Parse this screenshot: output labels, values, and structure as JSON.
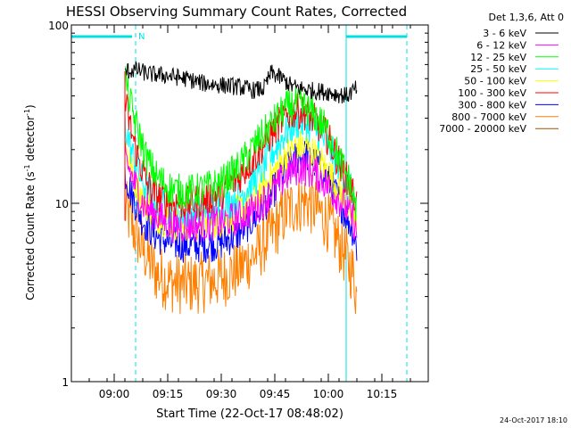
{
  "chart_data": {
    "type": "line",
    "title": "HESSI Observing Summary Count Rates, Corrected",
    "ylabel": "Corrected Count Rate (s",
    "ylabel_sup": "-1",
    "ylabel_tail": " detector",
    "ylabel_end": ")",
    "xlabel": "Start Time (22-Oct-17 08:48:02)",
    "yscale": "log",
    "ylim": [
      1,
      100
    ],
    "xlim": [
      "08:48",
      "10:28"
    ],
    "xticks": [
      {
        "t": "09:00",
        "label": "09:00"
      },
      {
        "t": "09:15",
        "label": "09:15"
      },
      {
        "t": "09:30",
        "label": "09:30"
      },
      {
        "t": "09:45",
        "label": "09:45"
      },
      {
        "t": "10:00",
        "label": "10:00"
      },
      {
        "t": "10:15",
        "label": "10:15"
      }
    ],
    "yticks": [
      {
        "v": 1,
        "label": "1"
      },
      {
        "v": 10,
        "label": "10"
      },
      {
        "v": 100,
        "label": "100"
      }
    ],
    "legend_title": "Det 1,3,6, Att 0",
    "legend_position": "outside-right",
    "timestamp": "24-Oct-2017 18:10",
    "night_marker": "N",
    "markers": {
      "solid_lines": [
        "08:48",
        "10:05"
      ],
      "dashed_lines": [
        "09:06",
        "10:22"
      ],
      "night_bars": [
        [
          "08:48",
          "09:05"
        ],
        [
          "10:05",
          "10:22"
        ]
      ]
    },
    "series": [
      {
        "name": "3 - 6 keV",
        "color": "#000000",
        "t": [
          "09:03",
          "09:06",
          "09:10",
          "09:15",
          "09:20",
          "09:25",
          "09:30",
          "09:35",
          "09:39",
          "09:42",
          "09:44",
          "09:47",
          "09:50",
          "09:55",
          "10:00",
          "10:05",
          "10:08"
        ],
        "y": [
          55,
          56,
          53,
          52,
          50,
          47,
          46,
          45,
          43,
          44,
          54,
          50,
          45,
          43,
          42,
          40,
          44
        ]
      },
      {
        "name": "6 - 12 keV",
        "color": "#ff00ff",
        "t": [
          "09:03",
          "09:05",
          "09:08",
          "09:12",
          "09:16",
          "09:20",
          "09:25",
          "09:30",
          "09:35",
          "09:40",
          "09:45",
          "09:48",
          "09:50",
          "09:53",
          "09:57",
          "10:00",
          "10:04",
          "10:07",
          "10:08"
        ],
        "y": [
          18,
          14,
          10,
          8.5,
          7.5,
          7.5,
          7.6,
          7.8,
          8.3,
          9.5,
          12,
          14,
          15.5,
          15.8,
          14.5,
          12.5,
          10,
          8,
          6.5
        ]
      },
      {
        "name": "12 - 25 keV",
        "color": "#00ff00",
        "t": [
          "09:03",
          "09:04",
          "09:06",
          "09:09",
          "09:12",
          "09:16",
          "09:20",
          "09:25",
          "09:30",
          "09:35",
          "09:40",
          "09:45",
          "09:48",
          "09:51",
          "09:54",
          "09:57",
          "10:00",
          "10:03",
          "10:06",
          "10:08"
        ],
        "y": [
          52,
          40,
          28,
          18,
          14,
          12,
          11.5,
          12,
          13,
          16,
          22,
          29,
          34,
          36,
          34,
          30,
          25,
          18,
          13,
          9
        ]
      },
      {
        "name": "25 - 50 keV",
        "color": "#00ffff",
        "t": [
          "09:03",
          "09:05",
          "09:08",
          "09:12",
          "09:16",
          "09:20",
          "09:25",
          "09:30",
          "09:35",
          "09:40",
          "09:45",
          "09:48",
          "09:51",
          "09:54",
          "09:57",
          "10:00",
          "10:04",
          "10:07",
          "10:08"
        ],
        "y": [
          28,
          19,
          13,
          10,
          9,
          8.8,
          9,
          9.5,
          11,
          14,
          20,
          25,
          28.5,
          28,
          25,
          21,
          15,
          11,
          9
        ]
      },
      {
        "name": "50 - 100 keV",
        "color": "#ffff00",
        "t": [
          "09:03",
          "09:05",
          "09:08",
          "09:12",
          "09:16",
          "09:20",
          "09:25",
          "09:30",
          "09:35",
          "09:40",
          "09:45",
          "09:48",
          "09:51",
          "09:54",
          "09:57",
          "10:00",
          "10:04",
          "10:07",
          "10:08"
        ],
        "y": [
          22,
          15,
          10.5,
          8.5,
          7.8,
          7.6,
          7.7,
          8,
          9,
          11,
          15,
          18.5,
          21,
          20.5,
          18,
          15,
          11,
          8.5,
          7
        ]
      },
      {
        "name": "100 - 300 keV",
        "color": "#ff0000",
        "t": [
          "09:03",
          "09:04",
          "09:06",
          "09:09",
          "09:12",
          "09:16",
          "09:20",
          "09:25",
          "09:30",
          "09:35",
          "09:40",
          "09:45",
          "09:48",
          "09:51",
          "09:54",
          "09:57",
          "10:00",
          "10:03",
          "10:06",
          "10:08"
        ],
        "y": [
          38,
          30,
          20,
          13,
          11,
          10.2,
          10,
          10.4,
          11.5,
          14,
          19,
          26,
          31,
          33,
          32,
          28,
          23,
          17,
          12.5,
          10
        ]
      },
      {
        "name": "300 - 800 keV",
        "color": "#0000ff",
        "t": [
          "09:03",
          "09:05",
          "09:08",
          "09:12",
          "09:16",
          "09:20",
          "09:25",
          "09:30",
          "09:35",
          "09:40",
          "09:45",
          "09:48",
          "09:51",
          "09:54",
          "09:57",
          "10:00",
          "10:04",
          "10:07",
          "10:08"
        ],
        "y": [
          15,
          11,
          8,
          6.5,
          6,
          5.8,
          5.8,
          6,
          6.8,
          8.5,
          12,
          15.5,
          18,
          18.5,
          16.5,
          13.5,
          9.5,
          7,
          5.5
        ]
      },
      {
        "name": "800 - 7000 keV",
        "color": "#ff7f00",
        "t": [
          "09:03",
          "09:05",
          "09:08",
          "09:12",
          "09:16",
          "09:20",
          "09:25",
          "09:30",
          "09:35",
          "09:40",
          "09:45",
          "09:48",
          "09:51",
          "09:54",
          "09:57",
          "10:00",
          "10:04",
          "10:07",
          "10:08"
        ],
        "y": [
          9.5,
          7.5,
          5.5,
          4,
          3.6,
          3.5,
          3.6,
          3.8,
          4.3,
          5.3,
          7.2,
          8.8,
          10,
          10.2,
          9.2,
          7.8,
          5.5,
          4,
          3
        ]
      },
      {
        "name": "7000 - 20000 keV",
        "color": "#a05000",
        "t": [],
        "y": []
      }
    ]
  }
}
